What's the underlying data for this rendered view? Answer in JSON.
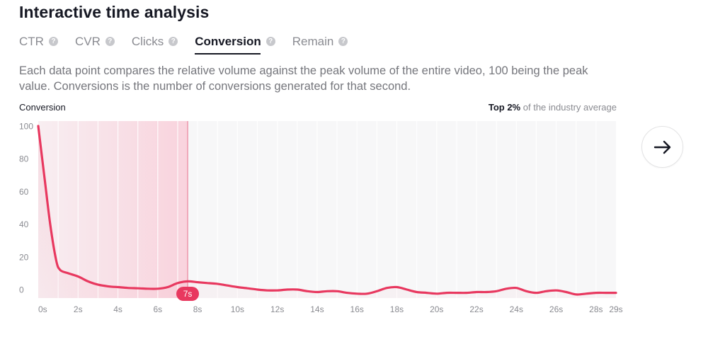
{
  "title": "Interactive time analysis",
  "tabs": [
    {
      "label": "CTR",
      "active": false
    },
    {
      "label": "CVR",
      "active": false
    },
    {
      "label": "Clicks",
      "active": false
    },
    {
      "label": "Conversion",
      "active": true
    },
    {
      "label": "Remain",
      "active": false
    }
  ],
  "help_glyph": "?",
  "description": "Each data point compares the relative volume against the peak volume of the entire video, 100 being the peak value. Conversions is the number of conversions generated for that second.",
  "chart_header": {
    "metric_label": "Conversion",
    "industry_rank": "Top 2%",
    "industry_suffix": "of the industry average"
  },
  "next_button_icon": "arrow-right-icon",
  "colors": {
    "line": "#e8385f",
    "highlight_band": "#f9d3dd",
    "selected_badge": "#e8385f"
  },
  "chart_data": {
    "type": "line",
    "title": "",
    "xlabel": "",
    "ylabel": "Conversion",
    "ylim": [
      0,
      100
    ],
    "y_ticks": [
      "0",
      "20",
      "40",
      "60",
      "80",
      "100"
    ],
    "x_tick_labels": [
      "0s",
      "2s",
      "4s",
      "6s",
      "8s",
      "10s",
      "12s",
      "14s",
      "16s",
      "18s",
      "20s",
      "22s",
      "24s",
      "26s",
      "28s",
      "29s"
    ],
    "x_tick_values": [
      0,
      2,
      4,
      6,
      8,
      10,
      12,
      14,
      16,
      18,
      20,
      22,
      24,
      26,
      28,
      29
    ],
    "xlim": [
      0,
      29
    ],
    "highlight_range": [
      0,
      7.5
    ],
    "selected_marker_label": "7s",
    "selected_marker_x": 7.5,
    "grid": true,
    "series": [
      {
        "x": [
          0,
          0.3,
          0.6,
          0.9,
          1.1,
          1.5,
          2.0,
          2.5,
          3.0,
          3.5,
          4.0,
          4.5,
          5.0,
          5.5,
          6.0,
          6.5,
          7.0,
          7.5,
          8.0,
          8.5,
          9.0,
          9.5,
          10.0,
          10.5,
          11.0,
          11.5,
          12.0,
          12.5,
          13.0,
          13.5,
          14.0,
          14.5,
          15.0,
          15.5,
          16.0,
          16.5,
          17.0,
          17.5,
          18.0,
          18.5,
          19.0,
          19.5,
          20.0,
          20.5,
          21.0,
          21.5,
          22.0,
          22.5,
          23.0,
          23.5,
          24.0,
          24.5,
          25.0,
          25.5,
          26.0,
          26.5,
          27.0,
          27.5,
          28.0,
          28.5,
          29.0
        ],
        "values": [
          100,
          70,
          40,
          18,
          12,
          10,
          8,
          5,
          3,
          2,
          1.5,
          1,
          0.8,
          0.5,
          0.5,
          1.5,
          4,
          5,
          4.5,
          4,
          3.5,
          2.5,
          1.5,
          0.8,
          0,
          -0.5,
          -0.5,
          0,
          0,
          -1,
          -1.5,
          -1,
          -1,
          -2,
          -2.5,
          -2.5,
          -1,
          1,
          1.5,
          0,
          -1.5,
          -2,
          -2.5,
          -2,
          -2,
          -2,
          -1.5,
          -1.5,
          -1,
          0.5,
          1,
          -1,
          -2,
          -1,
          -0.5,
          -1.5,
          -3,
          -2.5,
          -2,
          -2,
          -2
        ]
      }
    ]
  }
}
